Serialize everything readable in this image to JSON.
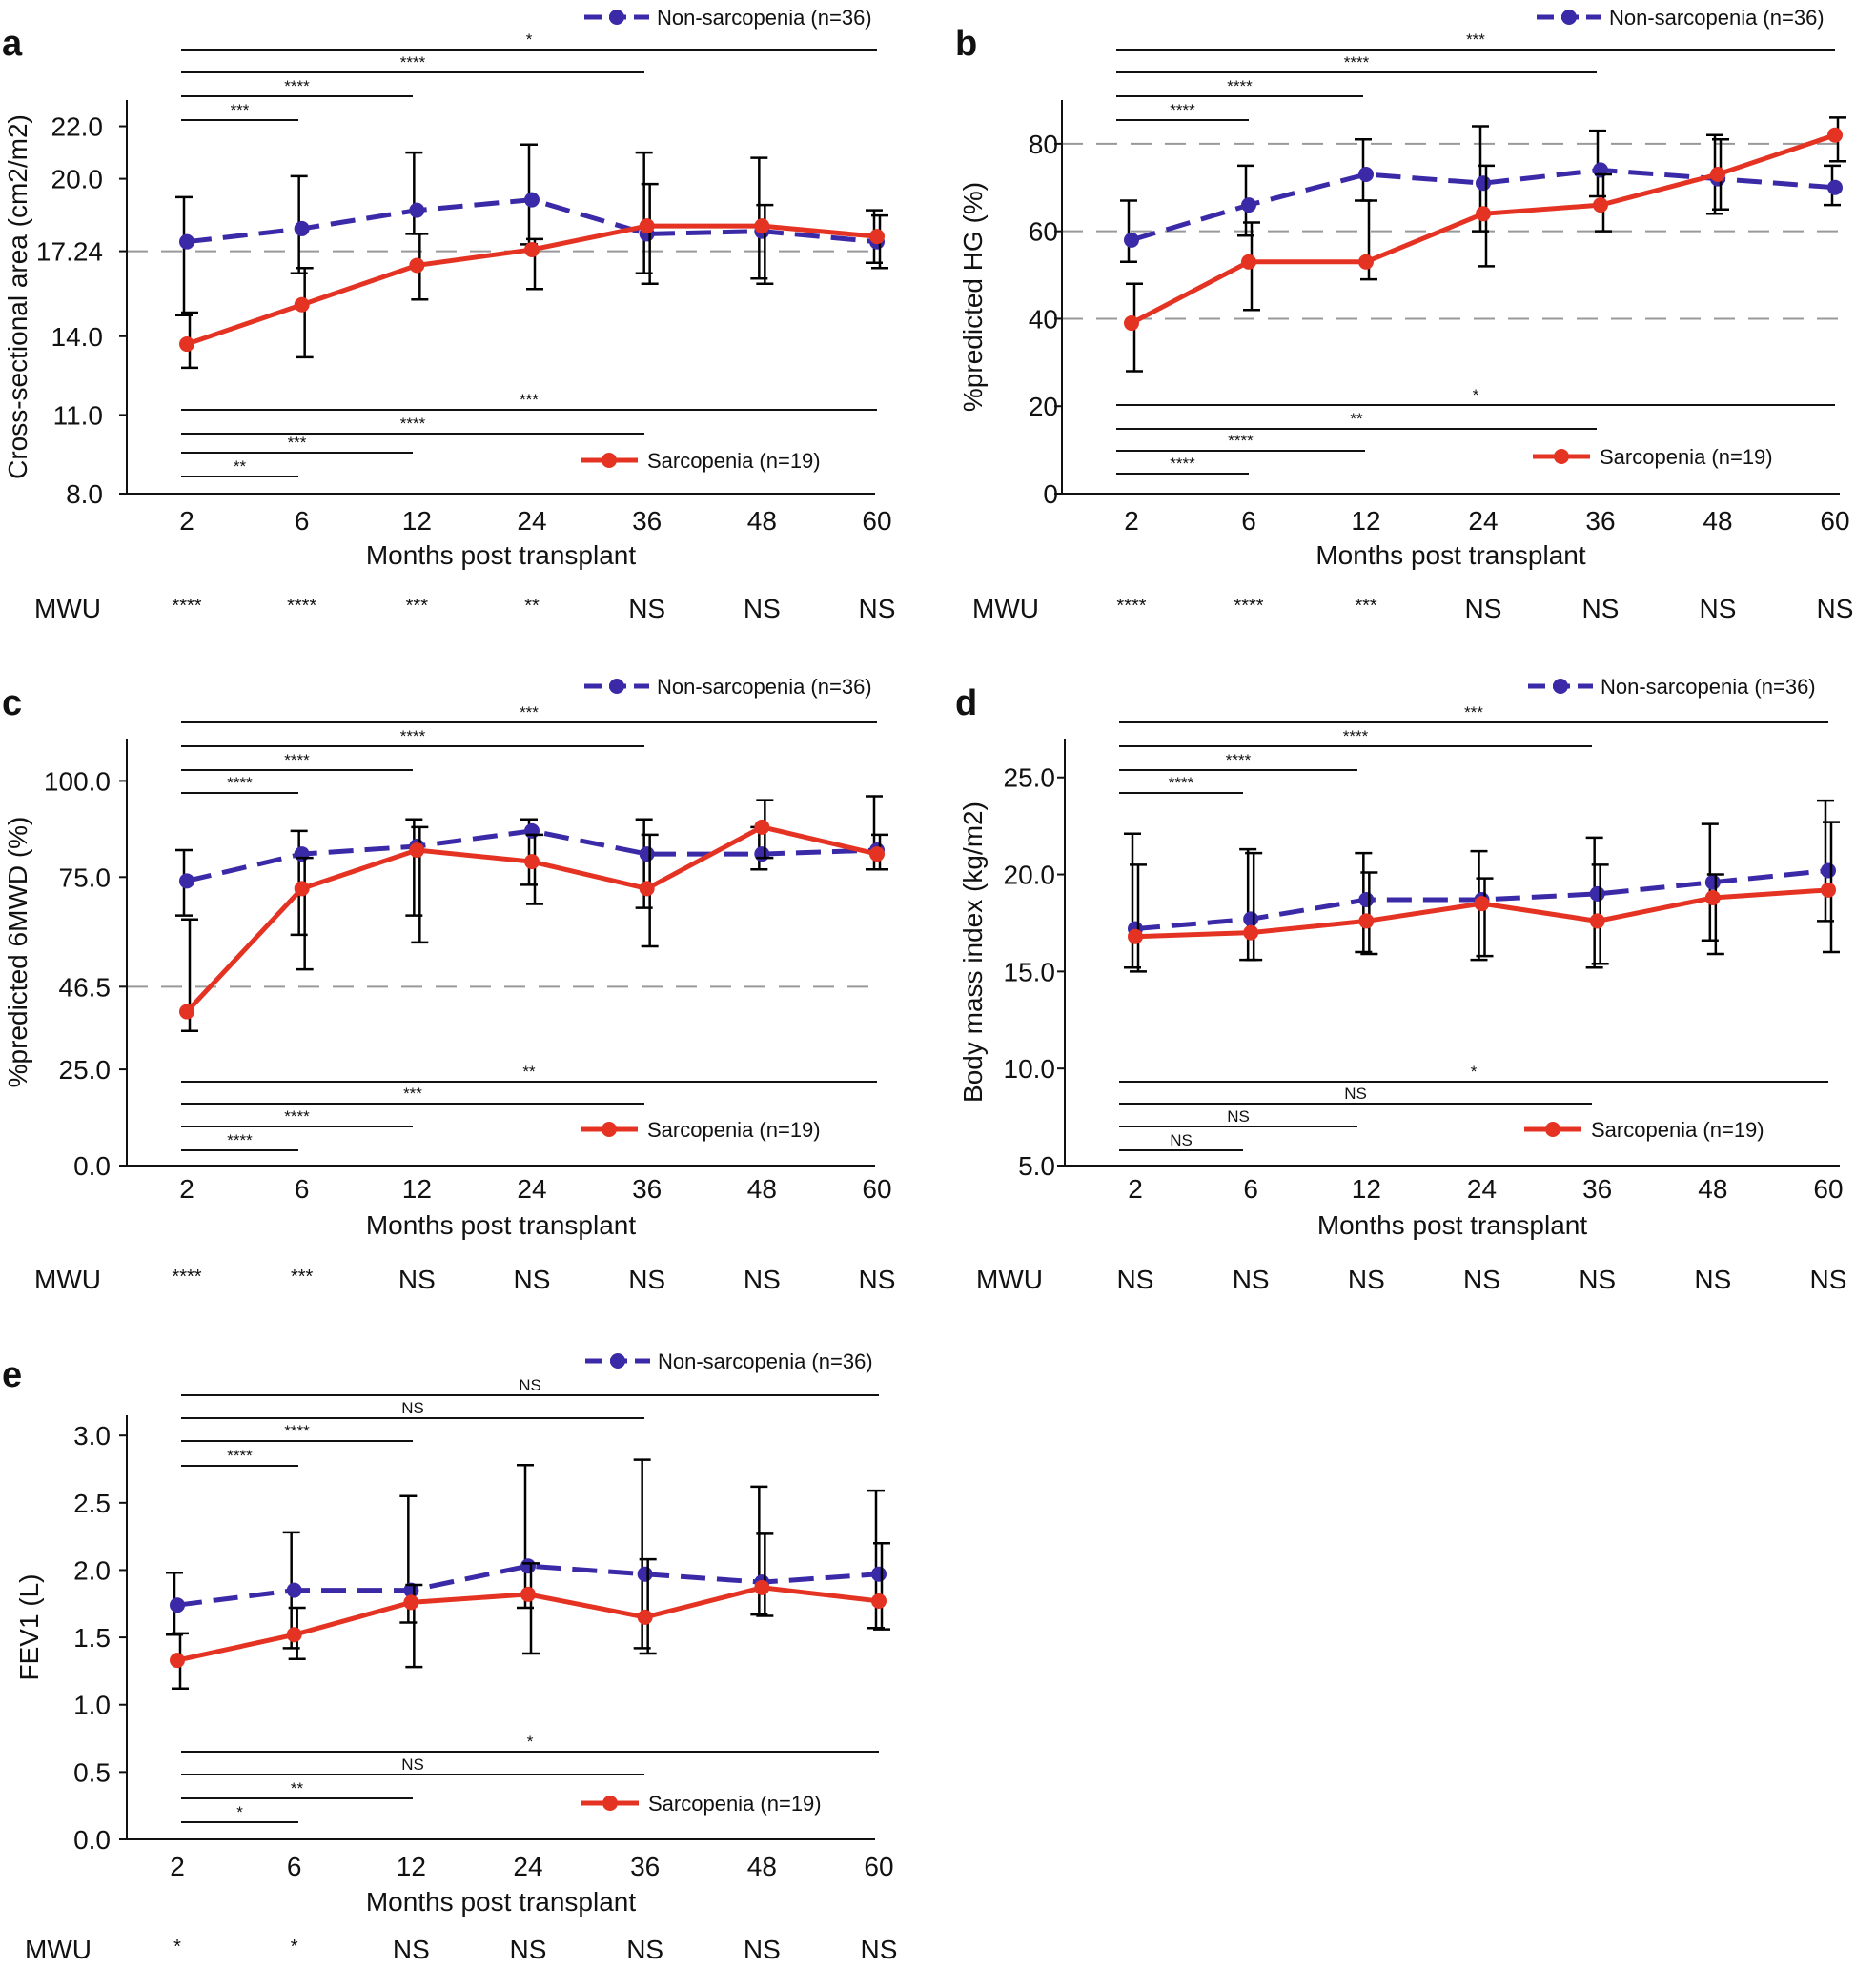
{
  "figure": {
    "x_label": "Months post transplant",
    "mwu_label": "MWU",
    "non_sarcopenia_label": "Non-sarcopenia (n=36)",
    "sarcopenia_label": "Sarcopenia (n=19)",
    "colors": {
      "non_sarcopenia": "#3a2aa8",
      "sarcopenia": "#e53323",
      "axis": "#111111",
      "ref": "#999999"
    }
  },
  "chart_data": [
    {
      "panel": "a",
      "type": "line",
      "ylabel": "Cross-sectional area (cm2/m2)",
      "xlabel": "Months post transplant",
      "categories": [
        "2",
        "6",
        "12",
        "24",
        "36",
        "48",
        "60"
      ],
      "yticks": [
        {
          "value": 8.0,
          "label": "8.0"
        },
        {
          "value": 11.0,
          "label": "11.0"
        },
        {
          "value": 14.0,
          "label": "14.0"
        },
        {
          "value": 17.24,
          "label": "17.24"
        },
        {
          "value": 20.0,
          "label": "20.0"
        },
        {
          "value": 22.0,
          "label": "22.0"
        }
      ],
      "ylim": [
        8,
        23
      ],
      "ref_lines": [
        17.24
      ],
      "series": [
        {
          "name": "Non-sarcopenia (n=36)",
          "values": [
            17.6,
            18.1,
            18.8,
            19.2,
            17.9,
            18.0,
            17.6
          ],
          "err_low": [
            14.8,
            16.4,
            17.9,
            17.5,
            16.4,
            16.2,
            16.8
          ],
          "err_high": [
            19.3,
            20.1,
            21.0,
            21.3,
            21.0,
            20.8,
            18.8
          ]
        },
        {
          "name": "Sarcopenia (n=19)",
          "values": [
            13.7,
            15.2,
            16.7,
            17.3,
            18.2,
            18.2,
            17.8
          ],
          "err_low": [
            12.8,
            13.2,
            15.4,
            15.8,
            16.0,
            16.0,
            16.6
          ],
          "err_high": [
            14.9,
            16.6,
            17.9,
            17.7,
            19.8,
            19.0,
            18.6
          ]
        }
      ],
      "top_brackets": [
        {
          "to": "6",
          "label": "***"
        },
        {
          "to": "12",
          "label": "****"
        },
        {
          "to": "36",
          "label": "****"
        },
        {
          "to": "60",
          "label": "*"
        }
      ],
      "bottom_brackets": [
        {
          "to": "6",
          "label": "**"
        },
        {
          "to": "12",
          "label": "***"
        },
        {
          "to": "36",
          "label": "****"
        },
        {
          "to": "60",
          "label": "***"
        }
      ],
      "mwu": [
        "****",
        "****",
        "***",
        "**",
        "NS",
        "NS",
        "NS"
      ]
    },
    {
      "panel": "b",
      "type": "line",
      "ylabel": "%predicted HG (%)",
      "xlabel": "Months post transplant",
      "categories": [
        "2",
        "6",
        "12",
        "24",
        "36",
        "48",
        "60"
      ],
      "yticks": [
        {
          "value": 0,
          "label": "0"
        },
        {
          "value": 20,
          "label": "20"
        },
        {
          "value": 40,
          "label": "40"
        },
        {
          "value": 60,
          "label": "60"
        },
        {
          "value": 80,
          "label": "80"
        }
      ],
      "ylim": [
        0,
        90
      ],
      "ref_lines": [
        40,
        60,
        80
      ],
      "series": [
        {
          "name": "Non-sarcopenia (n=36)",
          "values": [
            58,
            66,
            73,
            71,
            74,
            72,
            70
          ],
          "err_low": [
            53,
            59,
            67,
            60,
            68,
            64,
            66
          ],
          "err_high": [
            67,
            75,
            81,
            84,
            83,
            82,
            75
          ]
        },
        {
          "name": "Sarcopenia (n=19)",
          "values": [
            39,
            53,
            53,
            64,
            66,
            73,
            82
          ],
          "err_low": [
            28,
            42,
            49,
            52,
            60,
            65,
            76
          ],
          "err_high": [
            48,
            62,
            67,
            75,
            73,
            81,
            86
          ]
        }
      ],
      "top_brackets": [
        {
          "to": "6",
          "label": "****"
        },
        {
          "to": "12",
          "label": "****"
        },
        {
          "to": "36",
          "label": "****"
        },
        {
          "to": "60",
          "label": "***"
        }
      ],
      "bottom_brackets": [
        {
          "to": "6",
          "label": "****"
        },
        {
          "to": "12",
          "label": "****"
        },
        {
          "to": "36",
          "label": "**"
        },
        {
          "to": "60",
          "label": "*"
        }
      ],
      "mwu": [
        "****",
        "****",
        "***",
        "NS",
        "NS",
        "NS",
        "NS"
      ]
    },
    {
      "panel": "c",
      "type": "line",
      "ylabel": "%predicted 6MWD (%)",
      "xlabel": "Months post transplant",
      "categories": [
        "2",
        "6",
        "12",
        "24",
        "36",
        "48",
        "60"
      ],
      "yticks": [
        {
          "value": 0,
          "label": "0.0"
        },
        {
          "value": 25,
          "label": "25.0"
        },
        {
          "value": 46.5,
          "label": "46.5"
        },
        {
          "value": 75,
          "label": "75.0"
        },
        {
          "value": 100,
          "label": "100.0"
        }
      ],
      "ylim": [
        0,
        111
      ],
      "ref_lines": [
        46.5
      ],
      "series": [
        {
          "name": "Non-sarcopenia (n=36)",
          "values": [
            74,
            81,
            83,
            87,
            81,
            81,
            82
          ],
          "err_low": [
            65,
            60,
            65,
            73,
            67,
            77,
            77
          ],
          "err_high": [
            82,
            87,
            90,
            90,
            90,
            88,
            96
          ]
        },
        {
          "name": "Sarcopenia (n=19)",
          "values": [
            40,
            72,
            82,
            79,
            72,
            88,
            81
          ],
          "err_low": [
            35,
            51,
            58,
            68,
            57,
            80,
            77
          ],
          "err_high": [
            64,
            80,
            88,
            86,
            86,
            95,
            86
          ]
        }
      ],
      "top_brackets": [
        {
          "to": "6",
          "label": "****"
        },
        {
          "to": "12",
          "label": "****"
        },
        {
          "to": "36",
          "label": "****"
        },
        {
          "to": "60",
          "label": "***"
        }
      ],
      "bottom_brackets": [
        {
          "to": "6",
          "label": "****"
        },
        {
          "to": "12",
          "label": "****"
        },
        {
          "to": "36",
          "label": "***"
        },
        {
          "to": "60",
          "label": "**"
        }
      ],
      "mwu": [
        "****",
        "***",
        "NS",
        "NS",
        "NS",
        "NS",
        "NS"
      ]
    },
    {
      "panel": "d",
      "type": "line",
      "ylabel": "Body mass index (kg/m2)",
      "xlabel": "Months post transplant",
      "categories": [
        "2",
        "6",
        "12",
        "24",
        "36",
        "48",
        "60"
      ],
      "yticks": [
        {
          "value": 5,
          "label": "5.0"
        },
        {
          "value": 10,
          "label": "10.0"
        },
        {
          "value": 15,
          "label": "15.0"
        },
        {
          "value": 20,
          "label": "20.0"
        },
        {
          "value": 25,
          "label": "25.0"
        }
      ],
      "ylim": [
        5,
        27
      ],
      "ref_lines": [],
      "series": [
        {
          "name": "Non-sarcopenia (n=36)",
          "values": [
            17.2,
            17.7,
            18.7,
            18.7,
            19.0,
            19.6,
            20.2
          ],
          "err_low": [
            15.2,
            15.6,
            16.0,
            15.6,
            15.2,
            16.6,
            17.6
          ],
          "err_high": [
            22.1,
            21.3,
            21.1,
            21.2,
            21.9,
            22.6,
            23.8
          ]
        },
        {
          "name": "Sarcopenia (n=19)",
          "values": [
            16.8,
            17.0,
            17.6,
            18.5,
            17.6,
            18.8,
            19.2
          ],
          "err_low": [
            15.0,
            15.6,
            15.9,
            15.8,
            15.4,
            15.9,
            16.0
          ],
          "err_high": [
            20.5,
            21.1,
            20.1,
            19.8,
            20.5,
            20.0,
            22.7
          ]
        }
      ],
      "top_brackets": [
        {
          "to": "6",
          "label": "****"
        },
        {
          "to": "12",
          "label": "****"
        },
        {
          "to": "36",
          "label": "****"
        },
        {
          "to": "60",
          "label": "***"
        }
      ],
      "bottom_brackets": [
        {
          "to": "6",
          "label": "NS"
        },
        {
          "to": "12",
          "label": "NS"
        },
        {
          "to": "36",
          "label": "NS"
        },
        {
          "to": "60",
          "label": "*"
        }
      ],
      "mwu": [
        "NS",
        "NS",
        "NS",
        "NS",
        "NS",
        "NS",
        "NS"
      ]
    },
    {
      "panel": "e",
      "type": "line",
      "ylabel": "FEV1 (L)",
      "xlabel": "Months post transplant",
      "categories": [
        "2",
        "6",
        "12",
        "24",
        "36",
        "48",
        "60"
      ],
      "yticks": [
        {
          "value": 0.0,
          "label": "0.0"
        },
        {
          "value": 0.5,
          "label": "0.5"
        },
        {
          "value": 1.0,
          "label": "1.0"
        },
        {
          "value": 1.5,
          "label": "1.5"
        },
        {
          "value": 2.0,
          "label": "2.0"
        },
        {
          "value": 2.5,
          "label": "2.5"
        },
        {
          "value": 3.0,
          "label": "3.0"
        }
      ],
      "ylim": [
        0,
        3.15
      ],
      "ref_lines": [],
      "series": [
        {
          "name": "Non-sarcopenia (n=36)",
          "values": [
            1.74,
            1.85,
            1.85,
            2.03,
            1.97,
            1.91,
            1.97
          ],
          "err_low": [
            1.52,
            1.42,
            1.61,
            1.72,
            1.42,
            1.67,
            1.57
          ],
          "err_high": [
            1.98,
            2.28,
            2.55,
            2.78,
            2.82,
            2.62,
            2.59
          ]
        },
        {
          "name": "Sarcopenia (n=19)",
          "values": [
            1.33,
            1.52,
            1.76,
            1.82,
            1.65,
            1.87,
            1.77
          ],
          "err_low": [
            1.12,
            1.34,
            1.28,
            1.38,
            1.38,
            1.66,
            1.56
          ],
          "err_high": [
            1.53,
            1.72,
            1.89,
            2.05,
            2.08,
            2.27,
            2.2
          ]
        }
      ],
      "top_brackets": [
        {
          "to": "6",
          "label": "****"
        },
        {
          "to": "12",
          "label": "****"
        },
        {
          "to": "36",
          "label": "NS"
        },
        {
          "to": "60",
          "label": "NS"
        }
      ],
      "bottom_brackets": [
        {
          "to": "6",
          "label": "*"
        },
        {
          "to": "12",
          "label": "**"
        },
        {
          "to": "36",
          "label": "NS"
        },
        {
          "to": "60",
          "label": "*"
        }
      ],
      "mwu": [
        "*",
        "*",
        "NS",
        "NS",
        "NS",
        "NS",
        "NS"
      ]
    }
  ]
}
